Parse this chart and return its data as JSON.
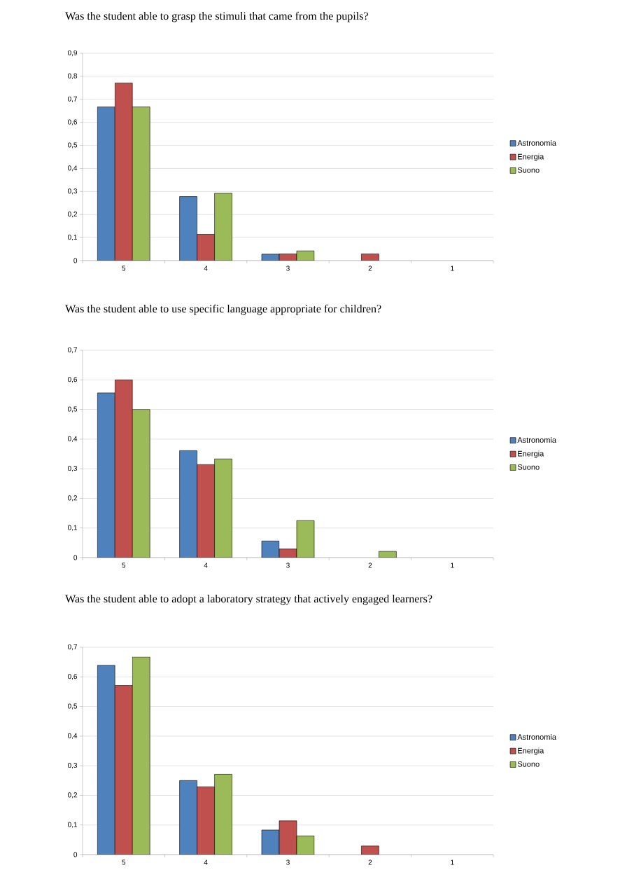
{
  "chart_data": [
    {
      "type": "bar",
      "title": "Was the student able to grasp the stimuli that came from the pupils?",
      "categories": [
        "5",
        "4",
        "3",
        "2",
        "1"
      ],
      "series": [
        {
          "name": "Astronomia",
          "color": "#4f81bd",
          "values": [
            0.667,
            0.278,
            0.028,
            0,
            0
          ]
        },
        {
          "name": "Energia",
          "color": "#c0504d",
          "values": [
            0.771,
            0.114,
            0.029,
            0.029,
            0
          ]
        },
        {
          "name": "Suono",
          "color": "#9bbb59",
          "values": [
            0.667,
            0.292,
            0.042,
            0,
            0
          ]
        }
      ],
      "ylim": [
        0,
        0.9
      ],
      "yticks": [
        0,
        {
          "value": 0.1,
          "label": "0,1"
        },
        {
          "value": 0.2,
          "label": "0,2"
        },
        {
          "value": 0.3,
          "label": "0,3"
        },
        {
          "value": 0.4,
          "label": "0,4"
        },
        {
          "value": 0.5,
          "label": "0,5"
        },
        {
          "value": 0.6,
          "label": "0,6"
        },
        {
          "value": 0.7,
          "label": "0,7"
        },
        {
          "value": 0.8,
          "label": "0,8"
        },
        {
          "value": 0.9,
          "label": "0,9"
        }
      ],
      "grid": "y",
      "legend": "right"
    },
    {
      "type": "bar",
      "title": "Was the student able to use specific language appropriate for children?",
      "categories": [
        "5",
        "4",
        "3",
        "2",
        "1"
      ],
      "series": [
        {
          "name": "Astronomia",
          "color": "#4f81bd",
          "values": [
            0.556,
            0.361,
            0.056,
            0,
            0
          ]
        },
        {
          "name": "Energia",
          "color": "#c0504d",
          "values": [
            0.6,
            0.314,
            0.029,
            0,
            0
          ]
        },
        {
          "name": "Suono",
          "color": "#9bbb59",
          "values": [
            0.5,
            0.333,
            0.125,
            0.021,
            0
          ]
        }
      ],
      "ylim": [
        0,
        0.7
      ],
      "yticks": [
        0,
        {
          "value": 0.1,
          "label": "0,1"
        },
        {
          "value": 0.2,
          "label": "0,2"
        },
        {
          "value": 0.3,
          "label": "0,3"
        },
        {
          "value": 0.4,
          "label": "0,4"
        },
        {
          "value": 0.5,
          "label": "0,5"
        },
        {
          "value": 0.6,
          "label": "0,6"
        },
        {
          "value": 0.7,
          "label": "0,7"
        }
      ],
      "grid": "y",
      "legend": "right"
    },
    {
      "type": "bar",
      "title": "Was the student able to adopt a laboratory strategy that actively engaged learners?",
      "categories": [
        "5",
        "4",
        "3",
        "2",
        "1"
      ],
      "series": [
        {
          "name": "Astronomia",
          "color": "#4f81bd",
          "values": [
            0.639,
            0.25,
            0.083,
            0,
            0
          ]
        },
        {
          "name": "Energia",
          "color": "#c0504d",
          "values": [
            0.571,
            0.229,
            0.114,
            0.029,
            0
          ]
        },
        {
          "name": "Suono",
          "color": "#9bbb59",
          "values": [
            0.667,
            0.271,
            0.063,
            0,
            0
          ]
        }
      ],
      "ylim": [
        0,
        0.7
      ],
      "yticks": [
        0,
        {
          "value": 0.1,
          "label": "0,1"
        },
        {
          "value": 0.2,
          "label": "0,2"
        },
        {
          "value": 0.3,
          "label": "0,3"
        },
        {
          "value": 0.4,
          "label": "0,4"
        },
        {
          "value": 0.5,
          "label": "0,5"
        },
        {
          "value": 0.6,
          "label": "0,6"
        },
        {
          "value": 0.7,
          "label": "0,7"
        }
      ],
      "grid": "y",
      "legend": "right"
    }
  ]
}
